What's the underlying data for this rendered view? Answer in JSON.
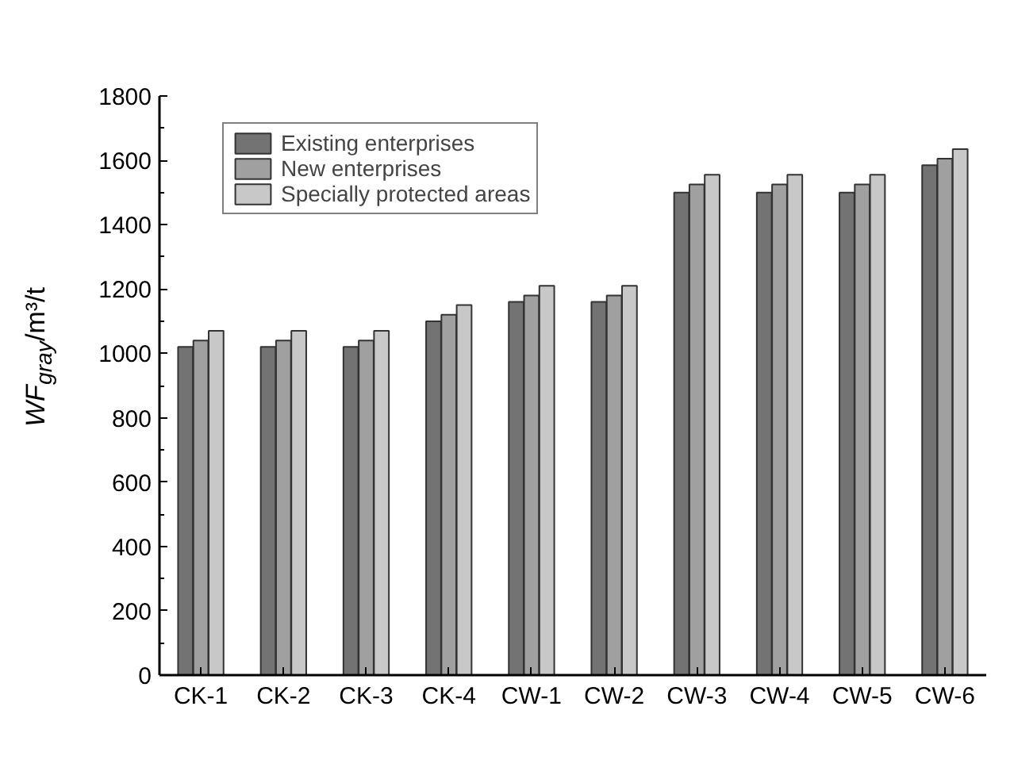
{
  "chart_data": {
    "type": "bar",
    "ylabel": "WF$_{gray}$/m³/t",
    "categories": [
      "CK-1",
      "CK-2",
      "CK-3",
      "CK-4",
      "CW-1",
      "CW-2",
      "CW-3",
      "CW-4",
      "CW-5",
      "CW-6"
    ],
    "series": [
      {
        "name": "Existing enterprises",
        "color": "#737373",
        "values": [
          1020,
          1020,
          1020,
          1100,
          1160,
          1160,
          1500,
          1500,
          1500,
          1585
        ]
      },
      {
        "name": "New enterprises",
        "color": "#a0a0a0",
        "values": [
          1040,
          1040,
          1040,
          1120,
          1180,
          1180,
          1525,
          1525,
          1525,
          1605
        ]
      },
      {
        "name": "Specially protected areas",
        "color": "#c8c8c8",
        "values": [
          1070,
          1070,
          1070,
          1150,
          1210,
          1210,
          1555,
          1555,
          1555,
          1635
        ]
      }
    ],
    "ylim": [
      0,
      1800
    ],
    "yticks": [
      0,
      200,
      400,
      600,
      800,
      1000,
      1200,
      1400,
      1600,
      1800
    ],
    "grid": false,
    "legend": "top left"
  }
}
